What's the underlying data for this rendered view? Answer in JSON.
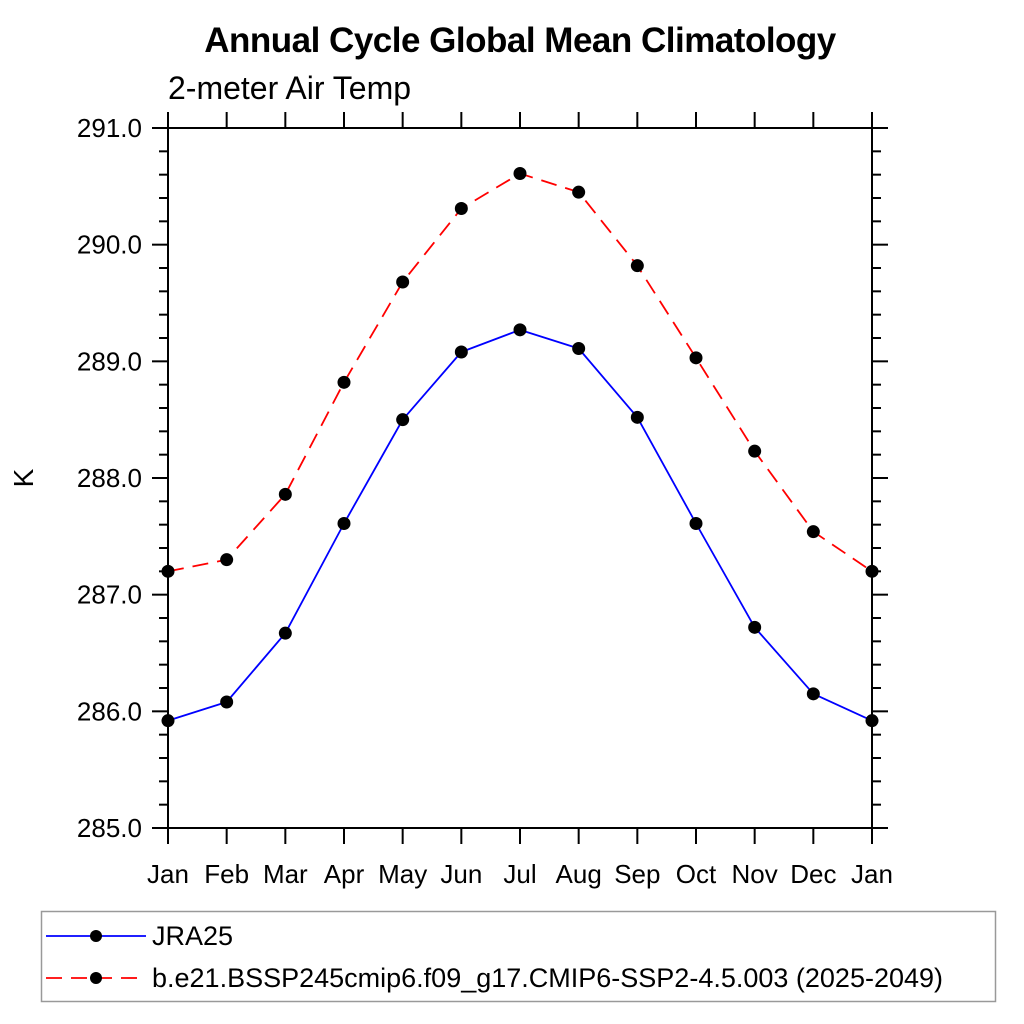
{
  "chart_data": {
    "type": "line",
    "title": "Annual Cycle Global Mean Climatology",
    "subtitle": "2-meter Air Temp",
    "ylabel": "K",
    "xlabel": "",
    "categories": [
      "Jan",
      "Feb",
      "Mar",
      "Apr",
      "May",
      "Jun",
      "Jul",
      "Aug",
      "Sep",
      "Oct",
      "Nov",
      "Dec",
      "Jan"
    ],
    "ylim": [
      285.0,
      291.0
    ],
    "ytick_major_step": 1.0,
    "ytick_minor_step": 0.2,
    "ytick_labels": [
      "285.0",
      "286.0",
      "287.0",
      "288.0",
      "289.0",
      "290.0",
      "291.0"
    ],
    "grid": false,
    "legend_position": "bottom",
    "axis_color": "#000000",
    "marker_color": "#000000",
    "legend_border_color": "#999999",
    "series": [
      {
        "name": "JRA25",
        "color": "#0000ff",
        "line_style": "solid",
        "marker": "filled-circle",
        "values": [
          285.92,
          286.08,
          286.67,
          287.61,
          288.5,
          289.08,
          289.27,
          289.11,
          288.52,
          287.61,
          286.72,
          286.15,
          285.92
        ]
      },
      {
        "name": "b.e21.BSSP245cmip6.f09_g17.CMIP6-SSP2-4.5.003 (2025-2049)",
        "color": "#ff0000",
        "line_style": "dashed",
        "marker": "filled-circle",
        "values": [
          287.2,
          287.3,
          287.86,
          288.82,
          289.68,
          290.31,
          290.61,
          290.45,
          289.82,
          289.03,
          288.23,
          287.54,
          287.2
        ]
      }
    ]
  }
}
